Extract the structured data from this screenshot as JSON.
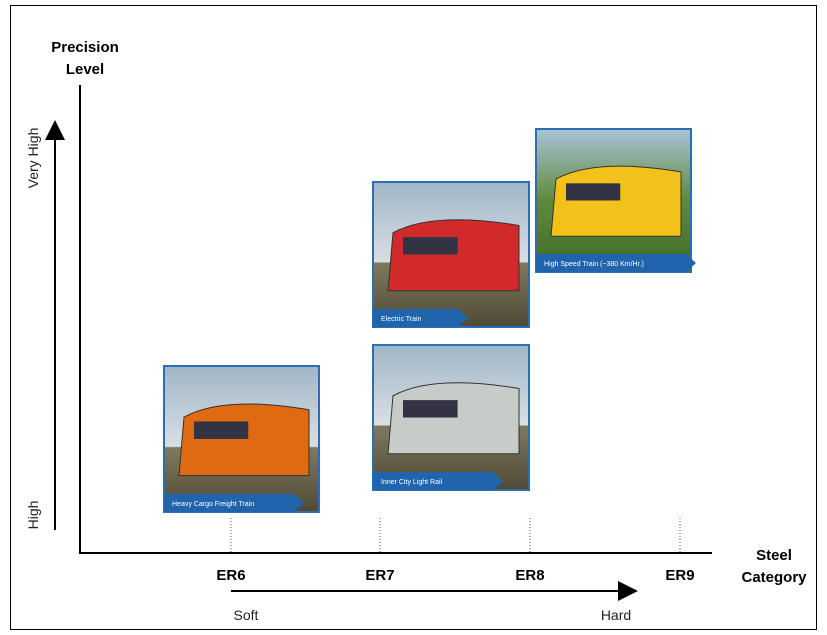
{
  "y_axis": {
    "title": [
      "Precision",
      "Level"
    ],
    "low": "High",
    "high": "Very High"
  },
  "x_axis": {
    "title": [
      "Steel",
      "Category"
    ],
    "categories": [
      "ER6",
      "ER7",
      "ER8",
      "ER9"
    ],
    "low": "Soft",
    "high": "Hard"
  },
  "trains": [
    {
      "label": "Heavy Cargo Freight Train"
    },
    {
      "label": "Electric Train"
    },
    {
      "label": "Inner City Light Rail"
    },
    {
      "label": "High Speed Train (~380 Km/Hr.)"
    }
  ]
}
